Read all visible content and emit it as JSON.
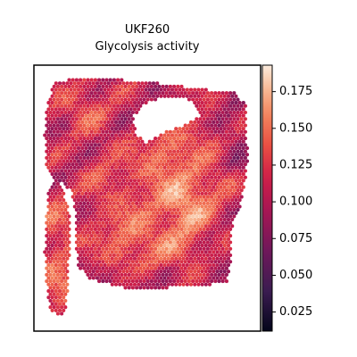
{
  "chart_data": {
    "type": "heatmap",
    "subtype": "spatial-hexagonal-spot-map",
    "title": "UKF260",
    "subtitle": "Glycolysis activity",
    "xlabel": "",
    "ylabel": "",
    "colormap": "rocket",
    "colorbar": {
      "range": [
        0.012,
        0.193
      ],
      "ticks": [
        0.025,
        0.05,
        0.075,
        0.1,
        0.125,
        0.15,
        0.175
      ],
      "tick_labels": [
        "0.025",
        "0.050",
        "0.075",
        "0.100",
        "0.125",
        "0.150",
        "0.175"
      ]
    },
    "colors": {
      "low": "#03051a",
      "mid": "#cb1b4f",
      "high": "#faebdd",
      "frame": "#000000"
    }
  }
}
